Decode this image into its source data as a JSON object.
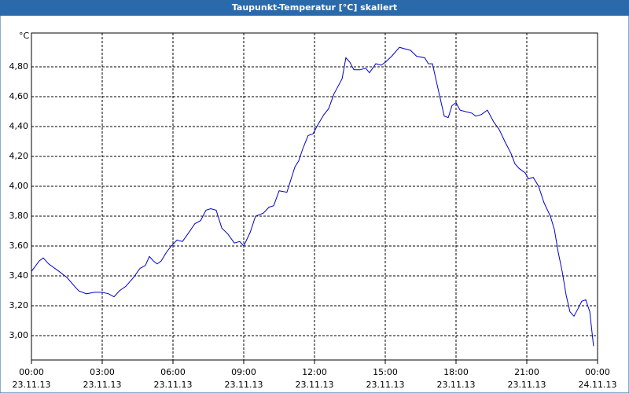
{
  "chart_data": {
    "type": "line",
    "title": "Taupunkt-Temperatur [°C] skaliert",
    "y_label": "°C",
    "x": [
      0,
      0.33,
      0.5,
      0.73,
      1.17,
      1.5,
      1.83,
      2,
      2.33,
      2.67,
      3,
      3.27,
      3.5,
      3.73,
      4,
      4.33,
      4.6,
      4.83,
      5,
      5.17,
      5.33,
      5.5,
      5.73,
      5.93,
      6.17,
      6.4,
      6.67,
      6.93,
      7.17,
      7.4,
      7.6,
      7.83,
      8.07,
      8.33,
      8.6,
      8.83,
      9,
      9.27,
      9.5,
      9.83,
      10.07,
      10.27,
      10.5,
      10.83,
      11.17,
      11.33,
      11.5,
      11.73,
      11.93,
      12.17,
      12.4,
      12.6,
      12.83,
      13,
      13.17,
      13.33,
      13.5,
      13.67,
      13.93,
      14.17,
      14.33,
      14.6,
      14.83,
      15,
      15.27,
      15.6,
      15.83,
      16.07,
      16.33,
      16.67,
      16.83,
      17,
      17.27,
      17.5,
      17.67,
      17.83,
      18,
      18.17,
      18.4,
      18.67,
      18.83,
      19.07,
      19.33,
      19.6,
      19.83,
      20.07,
      20.33,
      20.5,
      20.67,
      20.93,
      21.07,
      21.27,
      21.5,
      21.73,
      22,
      22.17,
      22.33,
      22.5,
      22.67,
      22.83,
      23,
      23.17,
      23.33,
      23.5,
      23.67,
      23.83
    ],
    "series": [
      {
        "name": "Taupunkt-Temperatur",
        "color": "#0000cc",
        "values": [
          3.43,
          3.5,
          3.52,
          3.48,
          3.43,
          3.39,
          3.33,
          3.3,
          3.28,
          3.29,
          3.29,
          3.28,
          3.26,
          3.3,
          3.33,
          3.39,
          3.45,
          3.47,
          3.53,
          3.5,
          3.48,
          3.5,
          3.56,
          3.6,
          3.64,
          3.63,
          3.69,
          3.75,
          3.77,
          3.84,
          3.85,
          3.84,
          3.72,
          3.68,
          3.62,
          3.63,
          3.6,
          3.69,
          3.8,
          3.82,
          3.86,
          3.87,
          3.97,
          3.96,
          4.13,
          4.17,
          4.25,
          4.34,
          4.35,
          4.42,
          4.48,
          4.52,
          4.62,
          4.67,
          4.72,
          4.86,
          4.83,
          4.78,
          4.78,
          4.79,
          4.76,
          4.82,
          4.81,
          4.83,
          4.87,
          4.93,
          4.92,
          4.91,
          4.87,
          4.86,
          4.82,
          4.82,
          4.63,
          4.47,
          4.46,
          4.54,
          4.56,
          4.51,
          4.5,
          4.49,
          4.47,
          4.48,
          4.51,
          4.43,
          4.38,
          4.3,
          4.22,
          4.15,
          4.12,
          4.09,
          4.05,
          4.06,
          4,
          3.89,
          3.8,
          3.71,
          3.56,
          3.43,
          3.27,
          3.16,
          3.13,
          3.18,
          3.23,
          3.24,
          3.16,
          2.93
        ]
      }
    ],
    "xlim": [
      0,
      24
    ],
    "xticks": [
      {
        "value": 0,
        "label": "00:00",
        "date": "23.11.13"
      },
      {
        "value": 3,
        "label": "03:00",
        "date": "23.11.13"
      },
      {
        "value": 6,
        "label": "06:00",
        "date": "23.11.13"
      },
      {
        "value": 9,
        "label": "09:00",
        "date": "23.11.13"
      },
      {
        "value": 12,
        "label": "12:00",
        "date": "23.11.13"
      },
      {
        "value": 15,
        "label": "15:00",
        "date": "23.11.13"
      },
      {
        "value": 18,
        "label": "18:00",
        "date": "23.11.13"
      },
      {
        "value": 21,
        "label": "21:00",
        "date": "23.11.13"
      },
      {
        "value": 24,
        "label": "00:00",
        "date": "24.11.13"
      }
    ],
    "ylim": [
      2.837,
      5.026
    ],
    "yticks": [
      {
        "value": 3,
        "label": "3,00"
      },
      {
        "value": 3.2,
        "label": "3,20"
      },
      {
        "value": 3.4,
        "label": "3,40"
      },
      {
        "value": 3.6,
        "label": "3,60"
      },
      {
        "value": 3.8,
        "label": "3,80"
      },
      {
        "value": 4,
        "label": "4,00"
      },
      {
        "value": 4.2,
        "label": "4,20"
      },
      {
        "value": 4.4,
        "label": "4,40"
      },
      {
        "value": 4.6,
        "label": "4,60"
      },
      {
        "value": 4.8,
        "label": "4,80"
      }
    ],
    "grid": true
  }
}
